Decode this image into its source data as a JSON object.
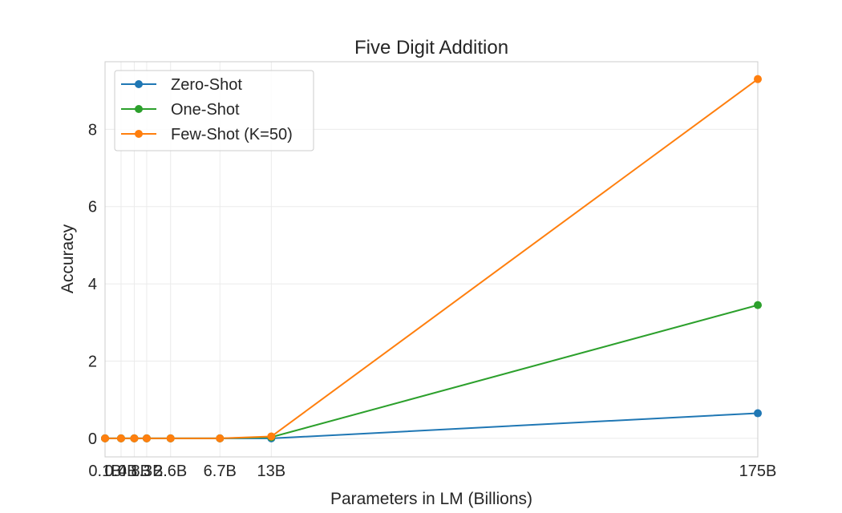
{
  "chart_data": {
    "type": "line",
    "title": "Five Digit Addition",
    "xlabel": "Parameters in LM (Billions)",
    "ylabel": "Accuracy",
    "x": [
      0.1,
      0.4,
      0.8,
      1.3,
      2.6,
      6.7,
      13,
      175
    ],
    "x_tick_labels": [
      "0.1B",
      "0.4B",
      "0.8B",
      "1.3B",
      "2.6B",
      "6.7B",
      "13B",
      "175B"
    ],
    "y_ticks": [
      0,
      2,
      4,
      6,
      8
    ],
    "ylim": [
      -0.48,
      9.75
    ],
    "grid": true,
    "legend_position": "top-left",
    "series": [
      {
        "name": "Zero-Shot",
        "color": "#1f77b4",
        "values": [
          0,
          0,
          0,
          0,
          0,
          0,
          0,
          0.65
        ]
      },
      {
        "name": "One-Shot",
        "color": "#2ca02c",
        "values": [
          0,
          0,
          0,
          0,
          0,
          0,
          0.03,
          3.45
        ]
      },
      {
        "name": "Few-Shot (K=50)",
        "color": "#ff7f0e",
        "values": [
          0,
          0,
          0,
          0,
          0,
          0,
          0.05,
          9.3
        ]
      }
    ]
  }
}
